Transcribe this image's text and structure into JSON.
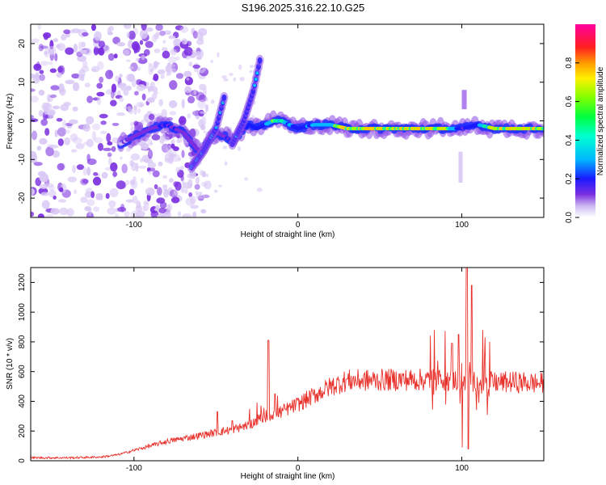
{
  "title": "S196.2025.316.22.10.G25",
  "colors": {
    "snr_line": "#e8302a",
    "ridge_hot": "#e0202a",
    "noise_light": "#d9c8f5",
    "noise_dark": "#7a2ee0"
  },
  "chart_data": [
    {
      "type": "heatmap",
      "xlabel": "Height of straight line (km)",
      "ylabel": "Frequency (Hz)",
      "xlim": [
        -163,
        150
      ],
      "ylim": [
        -25,
        25
      ],
      "xticks": [
        -100,
        0,
        100
      ],
      "xtick_labels": [
        "-100",
        "0",
        "100"
      ],
      "yticks": [
        -20,
        -10,
        0,
        10,
        20
      ],
      "ytick_labels": [
        "-20",
        "-10",
        "0",
        "10",
        "20"
      ],
      "colorbar": {
        "label": "Normalized spectral amplitude",
        "range": [
          0,
          1
        ],
        "ticks": [
          0.0,
          0.2,
          0.4,
          0.6,
          0.8
        ],
        "tick_labels": [
          "0.0",
          "0.2",
          "0.4",
          "0.6",
          "0.8"
        ]
      },
      "ridge": {
        "x": [
          -108,
          -100,
          -90,
          -80,
          -70,
          -60,
          -50,
          -40,
          -30,
          -25,
          -20,
          -15,
          -10,
          0,
          10,
          20,
          30,
          40,
          50,
          60,
          70,
          80,
          90,
          100,
          110,
          120,
          130,
          140,
          150
        ],
        "freq": [
          -6,
          -4,
          -2,
          -1,
          -3,
          -8,
          -3,
          -5,
          -1,
          -2,
          -1,
          0,
          0,
          -2,
          -1,
          -1,
          -2,
          -2,
          -2,
          -2,
          -2,
          -2,
          -2,
          -2,
          -1,
          -2,
          -2,
          -2,
          -2
        ],
        "amplitude": [
          0.15,
          0.2,
          0.25,
          0.3,
          0.25,
          0.2,
          0.25,
          0.3,
          0.35,
          0.4,
          0.5,
          0.7,
          0.6,
          0.4,
          0.5,
          0.6,
          0.85,
          0.8,
          0.85,
          0.8,
          0.9,
          0.85,
          0.8,
          0.3,
          0.5,
          0.85,
          0.9,
          0.85,
          0.8
        ]
      },
      "branches": [
        {
          "x": [
            -65,
            -58,
            -50,
            -45
          ],
          "freq": [
            -12,
            -8,
            -2,
            6
          ]
        },
        {
          "x": [
            -40,
            -33,
            -27,
            -23
          ],
          "freq": [
            -6,
            0,
            8,
            16
          ]
        }
      ]
    },
    {
      "type": "line",
      "xlabel": "Height of straight line (km)",
      "ylabel": "SNR (10 * v/v)",
      "xlim": [
        -163,
        150
      ],
      "ylim": [
        0,
        1300
      ],
      "xticks": [
        -100,
        0,
        100
      ],
      "xtick_labels": [
        "-100",
        "0",
        "100"
      ],
      "yticks": [
        0,
        200,
        400,
        600,
        800,
        1000,
        1200
      ],
      "ytick_labels": [
        "0",
        "200",
        "400",
        "600",
        "800",
        "1000",
        "1200"
      ],
      "series": [
        {
          "name": "SNR",
          "envelope_x": [
            -163,
            -140,
            -120,
            -110,
            -100,
            -90,
            -80,
            -70,
            -60,
            -50,
            -40,
            -30,
            -25,
            -20,
            -10,
            0,
            10,
            20,
            30,
            40,
            60,
            80,
            90,
            100,
            110,
            120,
            130,
            150
          ],
          "envelope_y": [
            20,
            20,
            25,
            40,
            70,
            100,
            130,
            150,
            170,
            190,
            210,
            240,
            270,
            300,
            330,
            380,
            440,
            500,
            540,
            540,
            545,
            545,
            545,
            540,
            530,
            525,
            530,
            520
          ],
          "spikes": [
            {
              "x": -49,
              "y": 330
            },
            {
              "x": -40,
              "y": 270
            },
            {
              "x": -18,
              "y": 810
            },
            {
              "x": -14,
              "y": 450
            },
            {
              "x": 83,
              "y": 880
            },
            {
              "x": 90,
              "y": 850
            },
            {
              "x": 94,
              "y": 790
            },
            {
              "x": 98,
              "y": 850
            },
            {
              "x": 103,
              "y": 1300
            },
            {
              "x": 106,
              "y": 1180
            },
            {
              "x": 114,
              "y": 830
            },
            {
              "x": 100,
              "y": 90
            },
            {
              "x": 104,
              "y": 80
            }
          ]
        }
      ]
    }
  ]
}
